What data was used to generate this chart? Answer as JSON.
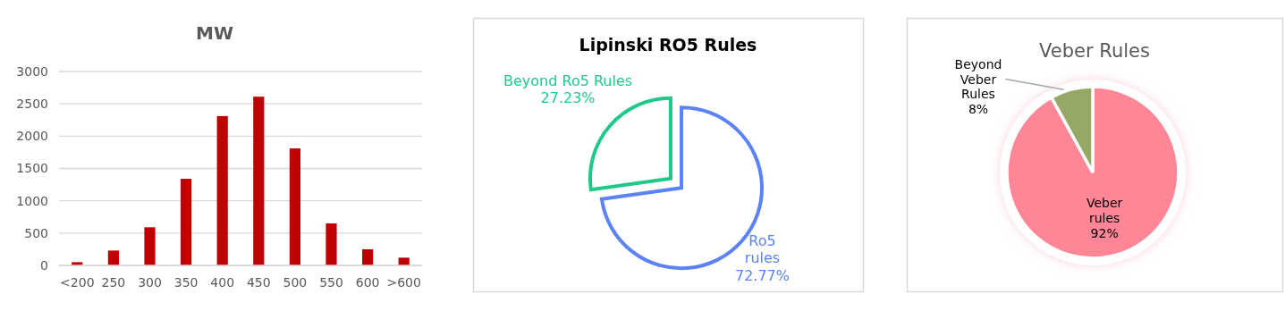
{
  "chart_data": [
    {
      "type": "bar",
      "title": "MW",
      "categories": [
        "<200",
        "250",
        "300",
        "350",
        "400",
        "450",
        "500",
        "550",
        "600",
        ">600"
      ],
      "values": [
        50,
        230,
        590,
        1340,
        2310,
        2610,
        1810,
        650,
        250,
        120
      ],
      "color": "#c00000",
      "ylim": [
        0,
        3000
      ],
      "yticks": [
        0,
        500,
        1000,
        1500,
        2000,
        2500,
        3000
      ],
      "grid": "y"
    },
    {
      "type": "pie",
      "title": "Lipinski RO5 Rules",
      "categories": [
        "Ro5 rules",
        "Beyond Ro5 Rules"
      ],
      "values": [
        72.77,
        27.23
      ],
      "colors": [
        "#5b83f7",
        "#1ec98a"
      ],
      "value_labels": [
        "72.77%",
        "27.23%"
      ]
    },
    {
      "type": "pie",
      "title": "Veber Rules",
      "categories": [
        "Veber rules",
        "Beyond Veber Rules"
      ],
      "values": [
        92,
        8
      ],
      "colors": [
        "#fe8696",
        "#96a865"
      ],
      "value_labels": [
        "92%",
        "8%"
      ]
    }
  ]
}
